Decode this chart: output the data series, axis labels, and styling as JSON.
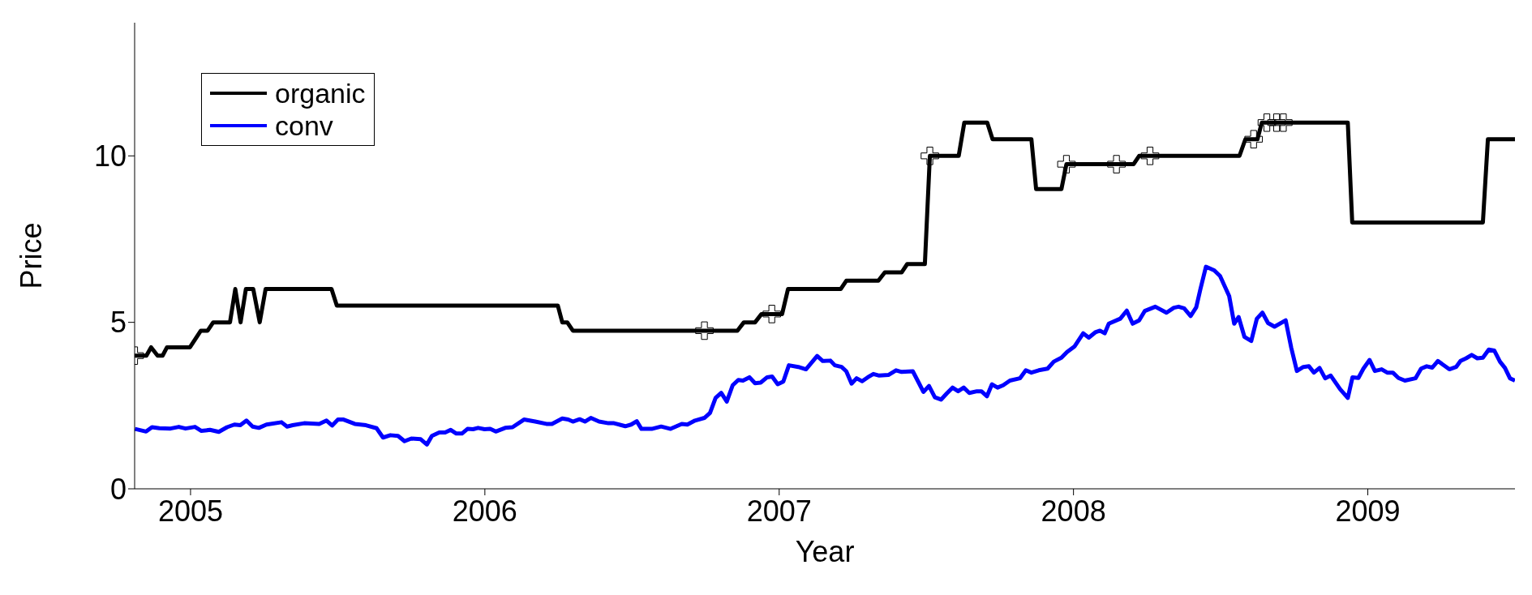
{
  "chart_data": {
    "type": "line",
    "xlabel": "Year",
    "ylabel": "Price",
    "xlim": [
      2004.81,
      2009.5
    ],
    "xticks": [
      2005,
      2006,
      2007,
      2008,
      2009
    ],
    "ylim": [
      0,
      14
    ],
    "yticks": [
      0,
      5,
      10
    ],
    "grid": false,
    "legend": "top left",
    "line_style": "solid",
    "series": [
      {
        "name": "organic",
        "type": "step",
        "color": "#000000",
        "marker": "none",
        "x": [
          2004.81,
          2004.85,
          2004.866,
          2004.888,
          2004.905,
          2004.92,
          2004.998,
          2005.035,
          2005.058,
          2005.077,
          2005.134,
          2005.152,
          2005.17,
          2005.188,
          2005.213,
          2005.235,
          2005.255,
          2005.479,
          2005.497,
          2006.248,
          2006.263,
          2006.28,
          2006.299,
          2006.858,
          2006.88,
          2006.918,
          2006.94,
          2007.01,
          2007.03,
          2007.209,
          2007.228,
          2007.337,
          2007.359,
          2007.416,
          2007.435,
          2007.495,
          2007.512,
          2007.61,
          2007.629,
          2007.707,
          2007.725,
          2007.857,
          2007.873,
          2007.959,
          2007.976,
          2008.204,
          2008.223,
          2008.564,
          2008.584,
          2008.625,
          2008.64,
          2008.932,
          2008.947,
          2009.391,
          2009.408,
          2009.5
        ],
        "values": [
          4.0,
          4.0,
          4.25,
          4.0,
          4.0,
          4.25,
          4.25,
          4.75,
          4.75,
          5.0,
          5.0,
          6.0,
          5.0,
          6.0,
          6.0,
          5.0,
          6.0,
          6.0,
          5.5,
          5.5,
          5.0,
          5.0,
          4.75,
          4.75,
          5.0,
          5.0,
          5.25,
          5.25,
          6.0,
          6.0,
          6.25,
          6.25,
          6.5,
          6.5,
          6.75,
          6.75,
          10.0,
          10.0,
          11.0,
          11.0,
          10.5,
          10.5,
          9.0,
          9.0,
          9.75,
          9.75,
          10.0,
          10.0,
          10.5,
          10.5,
          11.0,
          11.0,
          8.0,
          8.0,
          10.5,
          10.5
        ]
      },
      {
        "name": "conv",
        "color": "#0000ff",
        "marker": "none",
        "x": [
          2004.811,
          2004.849,
          2004.869,
          2004.894,
          2004.932,
          2004.96,
          2004.983,
          2005.015,
          2005.037,
          2005.066,
          2005.096,
          2005.124,
          2005.149,
          2005.169,
          2005.19,
          2005.211,
          2005.232,
          2005.258,
          2005.309,
          2005.328,
          2005.347,
          2005.386,
          2005.437,
          2005.462,
          2005.481,
          2005.501,
          2005.52,
          2005.558,
          2005.596,
          2005.632,
          2005.654,
          2005.679,
          2005.705,
          2005.727,
          2005.75,
          2005.782,
          2005.803,
          2005.82,
          2005.845,
          2005.865,
          2005.884,
          2005.903,
          2005.922,
          2005.941,
          2005.96,
          2005.977,
          2005.999,
          2006.018,
          2006.037,
          2006.069,
          2006.094,
          2006.133,
          2006.171,
          2006.209,
          2006.228,
          2006.263,
          2006.283,
          2006.299,
          2006.322,
          2006.34,
          2006.36,
          2006.388,
          2006.42,
          2006.439,
          2006.477,
          2006.497,
          2006.516,
          2006.532,
          2006.567,
          2006.599,
          2006.631,
          2006.669,
          2006.688,
          2006.714,
          2006.746,
          2006.765,
          2006.784,
          2006.803,
          2006.822,
          2006.842,
          2006.861,
          2006.877,
          2006.899,
          2006.918,
          2006.937,
          2006.959,
          2006.976,
          2006.995,
          2007.014,
          2007.033,
          2007.065,
          2007.091,
          2007.129,
          2007.148,
          2007.174,
          2007.189,
          2007.212,
          2007.228,
          2007.246,
          2007.263,
          2007.282,
          2007.301,
          2007.32,
          2007.34,
          2007.371,
          2007.397,
          2007.416,
          2007.454,
          2007.474,
          2007.49,
          2007.509,
          2007.529,
          2007.55,
          2007.569,
          2007.589,
          2007.608,
          2007.627,
          2007.646,
          2007.672,
          2007.687,
          2007.706,
          2007.723,
          2007.742,
          2007.761,
          2007.784,
          2007.818,
          2007.838,
          2007.857,
          2007.882,
          2007.912,
          2007.933,
          2007.959,
          2007.978,
          2008.004,
          2008.033,
          2008.052,
          2008.074,
          2008.09,
          2008.106,
          2008.12,
          2008.159,
          2008.181,
          2008.201,
          2008.223,
          2008.242,
          2008.278,
          2008.316,
          2008.341,
          2008.357,
          2008.376,
          2008.398,
          2008.417,
          2008.431,
          2008.45,
          2008.478,
          2008.498,
          2008.529,
          2008.546,
          2008.561,
          2008.581,
          2008.604,
          2008.623,
          2008.642,
          2008.661,
          2008.683,
          2008.721,
          2008.74,
          2008.759,
          2008.781,
          2008.8,
          2008.817,
          2008.836,
          2008.855,
          2008.874,
          2008.906,
          2008.932,
          2008.948,
          2008.968,
          2008.985,
          2009.006,
          2009.024,
          2009.047,
          2009.066,
          2009.085,
          2009.104,
          2009.126,
          2009.162,
          2009.181,
          2009.2,
          2009.219,
          2009.238,
          2009.277,
          2009.3,
          2009.315,
          2009.334,
          2009.353,
          2009.372,
          2009.391,
          2009.411,
          2009.43,
          2009.449,
          2009.466,
          2009.483,
          2009.5
        ],
        "values": [
          1.8,
          1.72,
          1.85,
          1.82,
          1.81,
          1.86,
          1.81,
          1.86,
          1.74,
          1.77,
          1.71,
          1.85,
          1.93,
          1.91,
          2.05,
          1.87,
          1.83,
          1.93,
          2.0,
          1.87,
          1.91,
          1.97,
          1.95,
          2.05,
          1.9,
          2.08,
          2.08,
          1.95,
          1.91,
          1.82,
          1.54,
          1.61,
          1.59,
          1.43,
          1.51,
          1.49,
          1.33,
          1.59,
          1.69,
          1.69,
          1.77,
          1.66,
          1.66,
          1.8,
          1.79,
          1.83,
          1.79,
          1.8,
          1.72,
          1.83,
          1.85,
          2.08,
          2.02,
          1.95,
          1.95,
          2.11,
          2.08,
          2.02,
          2.09,
          2.02,
          2.13,
          2.02,
          1.97,
          1.97,
          1.88,
          1.93,
          2.03,
          1.8,
          1.8,
          1.87,
          1.8,
          1.95,
          1.93,
          2.05,
          2.13,
          2.28,
          2.73,
          2.88,
          2.62,
          3.11,
          3.27,
          3.25,
          3.35,
          3.17,
          3.19,
          3.35,
          3.37,
          3.14,
          3.22,
          3.71,
          3.66,
          3.59,
          3.99,
          3.84,
          3.85,
          3.71,
          3.66,
          3.53,
          3.16,
          3.32,
          3.23,
          3.35,
          3.45,
          3.4,
          3.42,
          3.56,
          3.51,
          3.53,
          3.19,
          2.91,
          3.09,
          2.75,
          2.68,
          2.86,
          3.04,
          2.93,
          3.04,
          2.88,
          2.93,
          2.93,
          2.78,
          3.14,
          3.04,
          3.11,
          3.25,
          3.32,
          3.56,
          3.49,
          3.56,
          3.61,
          3.82,
          3.94,
          4.11,
          4.28,
          4.67,
          4.54,
          4.7,
          4.75,
          4.67,
          4.96,
          5.11,
          5.35,
          4.96,
          5.06,
          5.34,
          5.47,
          5.29,
          5.44,
          5.47,
          5.42,
          5.19,
          5.45,
          5.99,
          6.67,
          6.56,
          6.39,
          5.79,
          4.96,
          5.16,
          4.56,
          4.44,
          5.11,
          5.29,
          4.98,
          4.87,
          5.06,
          4.23,
          3.54,
          3.66,
          3.68,
          3.49,
          3.63,
          3.32,
          3.4,
          2.99,
          2.73,
          3.35,
          3.33,
          3.61,
          3.87,
          3.54,
          3.59,
          3.49,
          3.49,
          3.33,
          3.25,
          3.32,
          3.61,
          3.68,
          3.64,
          3.84,
          3.59,
          3.66,
          3.84,
          3.92,
          4.02,
          3.92,
          3.94,
          4.18,
          4.15,
          3.82,
          3.63,
          3.32,
          3.25
        ]
      },
      {
        "type": "scatter",
        "color": "#000000",
        "marker": "cross",
        "x": [
          2004.81,
          2006.746,
          2006.975,
          2007.512,
          2007.976,
          2008.146,
          2008.26,
          2008.612,
          2008.657,
          2008.69,
          2008.713
        ],
        "values": [
          4.0,
          4.75,
          5.25,
          10.0,
          9.75,
          9.75,
          10.0,
          10.5,
          11.0,
          11.0,
          11.0
        ]
      }
    ]
  }
}
